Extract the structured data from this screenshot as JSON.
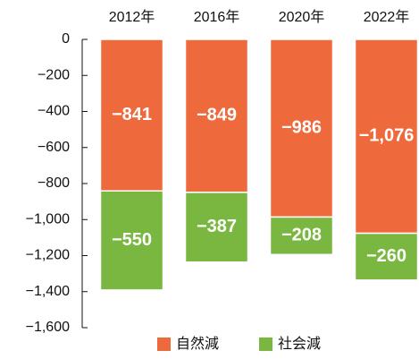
{
  "chart_data": {
    "type": "stacked_bar",
    "categories": [
      "2012年",
      "2016年",
      "2020年",
      "2022年"
    ],
    "series": [
      {
        "name": "自然減",
        "color": "#ee6a3c",
        "values": [
          -841,
          -849,
          -986,
          -1076
        ],
        "value_labels": [
          "−841",
          "−849",
          "−986",
          "−1,076"
        ]
      },
      {
        "name": "社会減",
        "color": "#7ab740",
        "values": [
          -550,
          -387,
          -208,
          -260
        ],
        "value_labels": [
          "−550",
          "−387",
          "−208",
          "−260"
        ]
      }
    ],
    "ylim": [
      0,
      -1600
    ],
    "yticks": [
      0,
      {
        "value": -200,
        "label": "−200"
      },
      {
        "value": -400,
        "label": "−400"
      },
      {
        "value": -600,
        "label": "−600"
      },
      {
        "value": -800,
        "label": "−800"
      },
      {
        "value": -1000,
        "label": "−1,000"
      },
      {
        "value": -1200,
        "label": "−1,200"
      },
      {
        "value": -1400,
        "label": "−1,400"
      },
      {
        "value": -1600,
        "label": "−1,600"
      }
    ],
    "legend": "bottom"
  }
}
